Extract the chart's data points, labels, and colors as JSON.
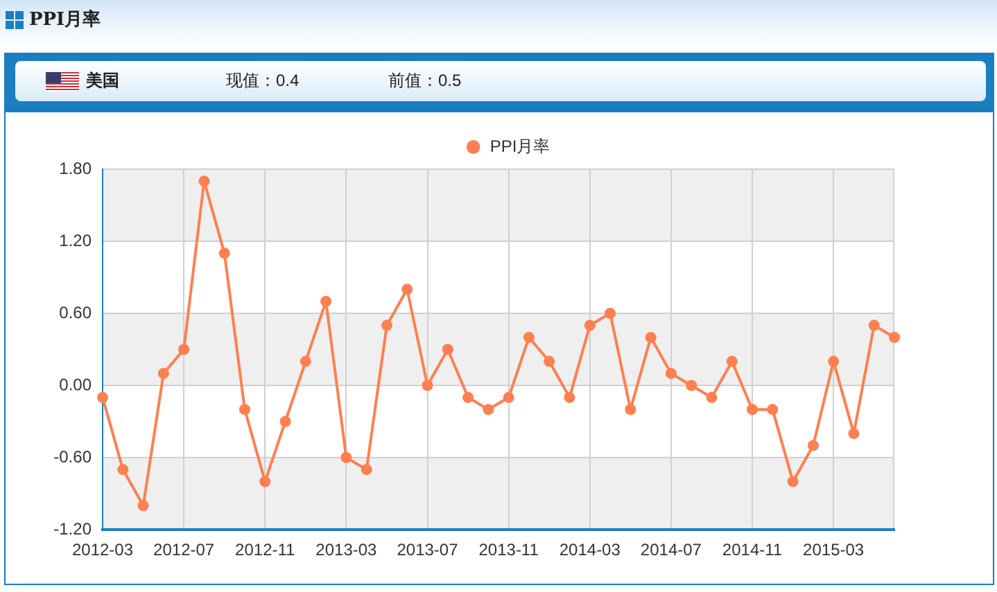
{
  "chart_data": {
    "type": "line",
    "title": "PPI月率",
    "annotations": [
      "美国",
      "现值：0.4",
      "前值：0.5"
    ],
    "x": [
      "2012-03",
      "2012-04",
      "2012-05",
      "2012-06",
      "2012-07",
      "2012-08",
      "2012-09",
      "2012-10",
      "2012-11",
      "2012-12",
      "2013-01",
      "2013-02",
      "2013-03",
      "2013-04",
      "2013-05",
      "2013-06",
      "2013-07",
      "2013-08",
      "2013-09",
      "2013-10",
      "2013-11",
      "2013-12",
      "2014-01",
      "2014-02",
      "2014-03",
      "2014-04",
      "2014-05",
      "2014-06",
      "2014-07",
      "2014-08",
      "2014-09",
      "2014-10",
      "2014-11",
      "2014-12",
      "2015-01",
      "2015-02",
      "2015-03",
      "2015-04",
      "2015-05",
      "2015-06"
    ],
    "series": [
      {
        "name": "PPI月率",
        "color": "#ff7f50",
        "values": [
          -0.1,
          -0.7,
          -1.0,
          0.1,
          0.3,
          1.7,
          1.1,
          -0.2,
          -0.8,
          -0.3,
          0.2,
          0.7,
          -0.6,
          -0.7,
          0.5,
          0.8,
          0.0,
          0.3,
          -0.1,
          -0.2,
          -0.1,
          0.4,
          0.2,
          -0.1,
          0.5,
          0.6,
          -0.2,
          0.4,
          0.1,
          0.0,
          -0.1,
          0.2,
          -0.2,
          -0.2,
          -0.8,
          -0.5,
          0.2,
          -0.4,
          0.5,
          0.4
        ]
      }
    ],
    "xlim": [
      "2012-03",
      "2015-06"
    ],
    "xticks": [
      "2012-03",
      "2012-07",
      "2012-11",
      "2013-03",
      "2013-07",
      "2013-11",
      "2014-03",
      "2014-07",
      "2014-11",
      "2015-03"
    ],
    "ylim": [
      -1.2,
      1.8
    ],
    "yticks": [
      {
        "value": -1.2,
        "label": "-1.20"
      },
      {
        "value": -0.6,
        "label": "-0.60"
      },
      {
        "value": 0,
        "label": "0.00"
      },
      {
        "value": 0.6,
        "label": "0.60"
      },
      {
        "value": 1.2,
        "label": "1.20"
      },
      {
        "value": 1.8,
        "label": "1.80"
      }
    ],
    "grid": true,
    "legend": "top",
    "marker": "circle",
    "line_style": "solid"
  }
}
